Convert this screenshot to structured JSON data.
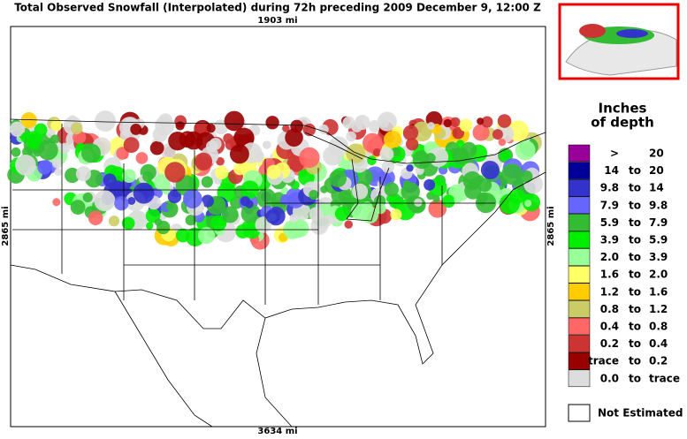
{
  "header": {
    "title": "Total Observed Snowfall (Interpolated) during 72h preceding 2009 December 9, 12:00 Z"
  },
  "map": {
    "top_distance": "1903 mi",
    "bottom_distance": "3634 mi",
    "left_distance": "2865 mi",
    "right_distance": "2865 mi"
  },
  "legend": {
    "title_line1": "Inches",
    "title_line2": "of depth",
    "rows": [
      {
        "color": "#990099",
        "low": ">",
        "to": "",
        "high": "20"
      },
      {
        "color": "#000099",
        "low": "14",
        "to": "to",
        "high": "20"
      },
      {
        "color": "#3333cc",
        "low": "9.8",
        "to": "to",
        "high": "14"
      },
      {
        "color": "#6666ff",
        "low": "7.9",
        "to": "to",
        "high": "9.8"
      },
      {
        "color": "#33bb33",
        "low": "5.9",
        "to": "to",
        "high": "7.9"
      },
      {
        "color": "#00ee00",
        "low": "3.9",
        "to": "to",
        "high": "5.9"
      },
      {
        "color": "#99ff99",
        "low": "2.0",
        "to": "to",
        "high": "3.9"
      },
      {
        "color": "#ffff66",
        "low": "1.6",
        "to": "to",
        "high": "2.0"
      },
      {
        "color": "#ffcc00",
        "low": "1.2",
        "to": "to",
        "high": "1.6"
      },
      {
        "color": "#cccc66",
        "low": "0.8",
        "to": "to",
        "high": "1.2"
      },
      {
        "color": "#ff6666",
        "low": "0.4",
        "to": "to",
        "high": "0.8"
      },
      {
        "color": "#cc3333",
        "low": "0.2",
        "to": "to",
        "high": "0.4"
      },
      {
        "color": "#990000",
        "low": "trace",
        "to": "to",
        "high": "0.2"
      },
      {
        "color": "#dddddd",
        "low": "0.0",
        "to": "to",
        "high": "trace"
      }
    ],
    "not_estimated": "Not Estimated"
  }
}
